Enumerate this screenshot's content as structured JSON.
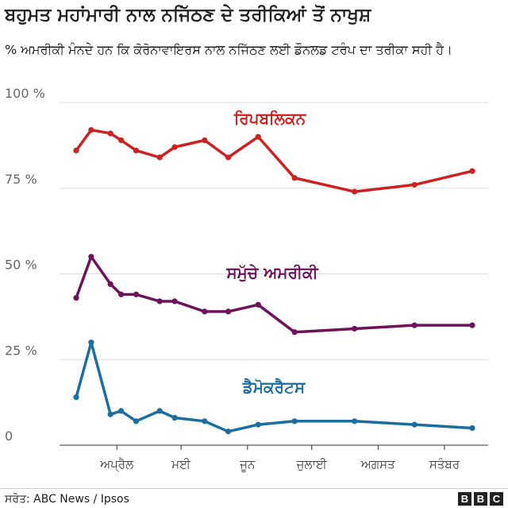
{
  "title": "ਬਹੁਮਤ ਮਹਾਂਮਾਰੀ ਨਾਲ ਨਜਿੱਠਣ ਦੇ ਤਰੀਕਿਆਂ ਤੋਂ ਨਾਖੁਸ਼",
  "subtitle": "% ਅਮਰੀਕੀ ਮੰਨਦੇ ਹਨ ਕਿ ਕੋਰੋਨਾਵਾਇਰਸ ਨਾਲ ਨਜਿੱਠਣ ਲਈ ਡੌਨਲਡ ਟਰੰਪ ਦਾ ਤਰੀਕਾ ਸਹੀ ਹੈ।",
  "source": "ਸਰੋਤ: ABC News / Ipsos",
  "logo": [
    "B",
    "B",
    "C"
  ],
  "chart_data": {
    "type": "line",
    "x_unit": "day of year 2020",
    "x": [
      73,
      80,
      89,
      94,
      101,
      112,
      119,
      133,
      144,
      158,
      175,
      203,
      231,
      258
    ],
    "series": [
      {
        "name": "ਰਿਪਬਲਿਕਨ",
        "color": "#cc2222",
        "values": [
          86,
          92,
          91,
          89,
          86,
          84,
          87,
          89,
          84,
          90,
          78,
          74,
          76,
          80
        ]
      },
      {
        "name": "ਸਮੁੱਚੇ ਅਮਰੀਕੀ",
        "color": "#6e1259",
        "values": [
          43,
          55,
          47,
          44,
          44,
          42,
          42,
          39,
          39,
          41,
          33,
          34,
          35,
          35
        ]
      },
      {
        "name": "ਡੈਮੋਕਰੈਟਸ",
        "color": "#1b6e9e",
        "values": [
          14,
          30,
          9,
          10,
          7,
          10,
          8,
          7,
          4,
          6,
          7,
          7,
          6,
          5
        ]
      }
    ],
    "yticks": [
      "0",
      "25 %",
      "50 %",
      "75 %",
      "100 %"
    ],
    "ytick_values": [
      0,
      25,
      50,
      75,
      100
    ],
    "xticks": [
      "ਅਪ੍ਰੈਲ",
      "ਮਈ",
      "ਜੂਨ",
      "ਜੁਲਾਈ",
      "ਅਗਸਤ",
      "ਸਤੰਬਰ"
    ],
    "xtick_values": [
      92,
      122,
      153,
      183,
      214,
      245
    ],
    "ylim": [
      0,
      100
    ],
    "xlim": [
      67,
      267
    ],
    "grid": true
  }
}
